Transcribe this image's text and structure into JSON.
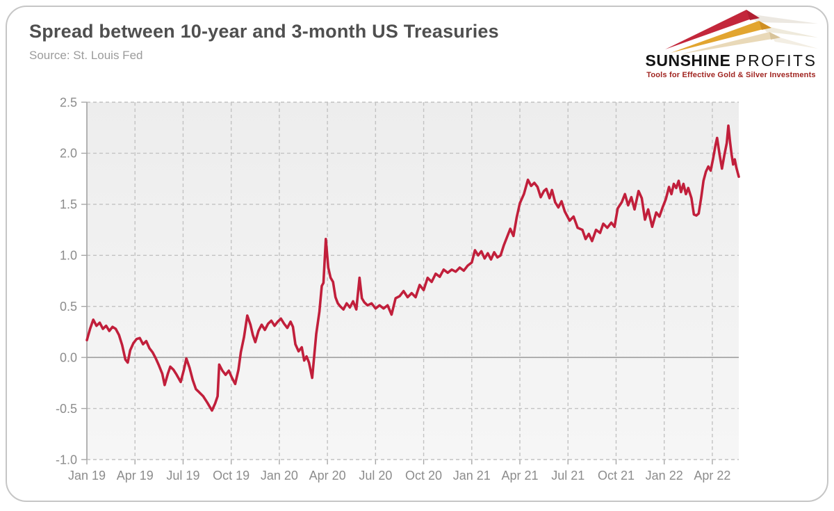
{
  "header": {
    "title": "Spread between 10-year and 3-month US Treasuries",
    "source": "Source: St. Louis Fed"
  },
  "logo": {
    "brand_bold": "SUNSHINE",
    "brand_light": "PROFITS",
    "tagline": "Tools for Effective Gold & Silver Investments",
    "arrow_red": "#c3273b",
    "arrow_gold": "#e2a52f",
    "arrow_wheat": "#e9d9b8",
    "tagline_color": "#a02420"
  },
  "chart_data": {
    "type": "line",
    "title": "Spread between 10-year and 3-month US Treasuries",
    "source": "St. Louis Fed",
    "x_unit": "months since Jan 2019",
    "x_range": [
      0,
      40.65
    ],
    "y_range": [
      -1.0,
      2.5
    ],
    "y_ticks": [
      2.5,
      2.0,
      1.5,
      1.0,
      0.5,
      0.0,
      -0.5,
      -1.0
    ],
    "y_tick_labels": [
      "2.5",
      "2.0",
      "1.5",
      "1.0",
      "0.5",
      "0.0",
      "-0.5",
      "-1.0"
    ],
    "x_ticks": [
      {
        "m": 0,
        "label": "Jan 19"
      },
      {
        "m": 3,
        "label": "Apr 19"
      },
      {
        "m": 6,
        "label": "Jul 19"
      },
      {
        "m": 9,
        "label": "Oct 19"
      },
      {
        "m": 12,
        "label": "Jan 20"
      },
      {
        "m": 15,
        "label": "Apr 20"
      },
      {
        "m": 18,
        "label": "Jul 20"
      },
      {
        "m": 21,
        "label": "Oct 20"
      },
      {
        "m": 24,
        "label": "Jan 21"
      },
      {
        "m": 27,
        "label": "Apr 21"
      },
      {
        "m": 30,
        "label": "Jul 21"
      },
      {
        "m": 33,
        "label": "Oct 21"
      },
      {
        "m": 36,
        "label": "Jan 22"
      },
      {
        "m": 39,
        "label": "Apr 22"
      }
    ],
    "grid": "dashed",
    "zero_line": true,
    "plot_bg_top": "#ededed",
    "plot_bg_bottom": "#f6f6f6",
    "grid_color": "#c2c2c2",
    "axis_color": "#a6a6a6",
    "label_color": "#8c8c8c",
    "series": [
      {
        "name": "10-year minus 3-month Treasury spread (percentage points)",
        "color": "#c11f3b",
        "points": [
          [
            0,
            0.17
          ],
          [
            0.2,
            0.28
          ],
          [
            0.4,
            0.37
          ],
          [
            0.6,
            0.31
          ],
          [
            0.8,
            0.34
          ],
          [
            1,
            0.28
          ],
          [
            1.2,
            0.31
          ],
          [
            1.4,
            0.26
          ],
          [
            1.6,
            0.3
          ],
          [
            1.8,
            0.28
          ],
          [
            2,
            0.22
          ],
          [
            2.2,
            0.12
          ],
          [
            2.4,
            -0.02
          ],
          [
            2.55,
            -0.05
          ],
          [
            2.7,
            0.07
          ],
          [
            2.9,
            0.14
          ],
          [
            3.1,
            0.18
          ],
          [
            3.3,
            0.19
          ],
          [
            3.5,
            0.13
          ],
          [
            3.7,
            0.16
          ],
          [
            3.9,
            0.09
          ],
          [
            4.1,
            0.05
          ],
          [
            4.3,
            -0.01
          ],
          [
            4.5,
            -0.08
          ],
          [
            4.7,
            -0.16
          ],
          [
            4.85,
            -0.27
          ],
          [
            5.05,
            -0.16
          ],
          [
            5.2,
            -0.09
          ],
          [
            5.4,
            -0.12
          ],
          [
            5.6,
            -0.17
          ],
          [
            5.85,
            -0.24
          ],
          [
            6.05,
            -0.12
          ],
          [
            6.2,
            -0.01
          ],
          [
            6.4,
            -0.1
          ],
          [
            6.6,
            -0.22
          ],
          [
            6.8,
            -0.31
          ],
          [
            7,
            -0.34
          ],
          [
            7.25,
            -0.38
          ],
          [
            7.5,
            -0.44
          ],
          [
            7.8,
            -0.52
          ],
          [
            8,
            -0.45
          ],
          [
            8.15,
            -0.38
          ],
          [
            8.25,
            -0.07
          ],
          [
            8.45,
            -0.13
          ],
          [
            8.65,
            -0.17
          ],
          [
            8.85,
            -0.13
          ],
          [
            9.05,
            -0.2
          ],
          [
            9.25,
            -0.26
          ],
          [
            9.45,
            -0.12
          ],
          [
            9.6,
            0.05
          ],
          [
            9.8,
            0.2
          ],
          [
            10,
            0.41
          ],
          [
            10.2,
            0.32
          ],
          [
            10.35,
            0.22
          ],
          [
            10.5,
            0.15
          ],
          [
            10.7,
            0.26
          ],
          [
            10.9,
            0.32
          ],
          [
            11.1,
            0.27
          ],
          [
            11.3,
            0.33
          ],
          [
            11.5,
            0.36
          ],
          [
            11.7,
            0.31
          ],
          [
            11.9,
            0.35
          ],
          [
            12.1,
            0.38
          ],
          [
            12.3,
            0.33
          ],
          [
            12.5,
            0.29
          ],
          [
            12.7,
            0.35
          ],
          [
            12.85,
            0.3
          ],
          [
            13,
            0.13
          ],
          [
            13.2,
            0.06
          ],
          [
            13.4,
            0.1
          ],
          [
            13.55,
            -0.03
          ],
          [
            13.7,
            0.01
          ],
          [
            13.85,
            -0.05
          ],
          [
            14.05,
            -0.2
          ],
          [
            14.3,
            0.23
          ],
          [
            14.5,
            0.45
          ],
          [
            14.65,
            0.7
          ],
          [
            14.75,
            0.73
          ],
          [
            14.9,
            1.16
          ],
          [
            15.05,
            0.88
          ],
          [
            15.2,
            0.78
          ],
          [
            15.35,
            0.74
          ],
          [
            15.5,
            0.59
          ],
          [
            15.65,
            0.53
          ],
          [
            15.8,
            0.5
          ],
          [
            16,
            0.47
          ],
          [
            16.2,
            0.53
          ],
          [
            16.4,
            0.49
          ],
          [
            16.6,
            0.55
          ],
          [
            16.8,
            0.47
          ],
          [
            17,
            0.78
          ],
          [
            17.15,
            0.58
          ],
          [
            17.3,
            0.54
          ],
          [
            17.5,
            0.51
          ],
          [
            17.75,
            0.53
          ],
          [
            18,
            0.48
          ],
          [
            18.25,
            0.51
          ],
          [
            18.5,
            0.48
          ],
          [
            18.75,
            0.51
          ],
          [
            19,
            0.42
          ],
          [
            19.25,
            0.58
          ],
          [
            19.5,
            0.6
          ],
          [
            19.75,
            0.65
          ],
          [
            20,
            0.59
          ],
          [
            20.25,
            0.63
          ],
          [
            20.5,
            0.59
          ],
          [
            20.75,
            0.71
          ],
          [
            21,
            0.66
          ],
          [
            21.25,
            0.78
          ],
          [
            21.5,
            0.74
          ],
          [
            21.75,
            0.82
          ],
          [
            22,
            0.79
          ],
          [
            22.25,
            0.86
          ],
          [
            22.5,
            0.83
          ],
          [
            22.75,
            0.86
          ],
          [
            23,
            0.84
          ],
          [
            23.25,
            0.88
          ],
          [
            23.5,
            0.85
          ],
          [
            23.75,
            0.9
          ],
          [
            24,
            0.93
          ],
          [
            24.2,
            1.05
          ],
          [
            24.4,
            1
          ],
          [
            24.6,
            1.04
          ],
          [
            24.8,
            0.97
          ],
          [
            25,
            1.02
          ],
          [
            25.2,
            0.96
          ],
          [
            25.4,
            1.03
          ],
          [
            25.6,
            0.98
          ],
          [
            25.8,
            1
          ],
          [
            26,
            1.1
          ],
          [
            26.2,
            1.18
          ],
          [
            26.4,
            1.26
          ],
          [
            26.6,
            1.19
          ],
          [
            26.8,
            1.37
          ],
          [
            27,
            1.51
          ],
          [
            27.25,
            1.6
          ],
          [
            27.5,
            1.74
          ],
          [
            27.7,
            1.68
          ],
          [
            27.9,
            1.71
          ],
          [
            28.1,
            1.67
          ],
          [
            28.3,
            1.57
          ],
          [
            28.5,
            1.63
          ],
          [
            28.65,
            1.65
          ],
          [
            28.85,
            1.56
          ],
          [
            29,
            1.64
          ],
          [
            29.2,
            1.52
          ],
          [
            29.4,
            1.47
          ],
          [
            29.6,
            1.53
          ],
          [
            29.8,
            1.43
          ],
          [
            30.1,
            1.34
          ],
          [
            30.35,
            1.38
          ],
          [
            30.6,
            1.27
          ],
          [
            30.9,
            1.25
          ],
          [
            31.1,
            1.16
          ],
          [
            31.3,
            1.21
          ],
          [
            31.5,
            1.14
          ],
          [
            31.75,
            1.25
          ],
          [
            32,
            1.22
          ],
          [
            32.2,
            1.31
          ],
          [
            32.45,
            1.27
          ],
          [
            32.7,
            1.32
          ],
          [
            32.9,
            1.28
          ],
          [
            33.1,
            1.46
          ],
          [
            33.35,
            1.52
          ],
          [
            33.55,
            1.6
          ],
          [
            33.75,
            1.49
          ],
          [
            33.95,
            1.57
          ],
          [
            34.15,
            1.45
          ],
          [
            34.4,
            1.63
          ],
          [
            34.6,
            1.56
          ],
          [
            34.8,
            1.35
          ],
          [
            35,
            1.45
          ],
          [
            35.25,
            1.28
          ],
          [
            35.5,
            1.42
          ],
          [
            35.7,
            1.38
          ],
          [
            35.9,
            1.47
          ],
          [
            36.1,
            1.55
          ],
          [
            36.3,
            1.67
          ],
          [
            36.45,
            1.6
          ],
          [
            36.6,
            1.7
          ],
          [
            36.75,
            1.66
          ],
          [
            36.9,
            1.73
          ],
          [
            37.05,
            1.62
          ],
          [
            37.2,
            1.7
          ],
          [
            37.35,
            1.6
          ],
          [
            37.5,
            1.66
          ],
          [
            37.7,
            1.56
          ],
          [
            37.85,
            1.4
          ],
          [
            38,
            1.39
          ],
          [
            38.15,
            1.41
          ],
          [
            38.3,
            1.56
          ],
          [
            38.45,
            1.73
          ],
          [
            38.6,
            1.82
          ],
          [
            38.75,
            1.87
          ],
          [
            38.9,
            1.83
          ],
          [
            39.05,
            1.95
          ],
          [
            39.2,
            2.08
          ],
          [
            39.3,
            2.15
          ],
          [
            39.45,
            1.99
          ],
          [
            39.6,
            1.85
          ],
          [
            39.75,
            1.98
          ],
          [
            39.9,
            2.1
          ],
          [
            40,
            2.27
          ],
          [
            40.1,
            2.12
          ],
          [
            40.2,
            1.99
          ],
          [
            40.3,
            1.89
          ],
          [
            40.4,
            1.94
          ],
          [
            40.5,
            1.86
          ],
          [
            40.65,
            1.77
          ]
        ]
      }
    ]
  }
}
